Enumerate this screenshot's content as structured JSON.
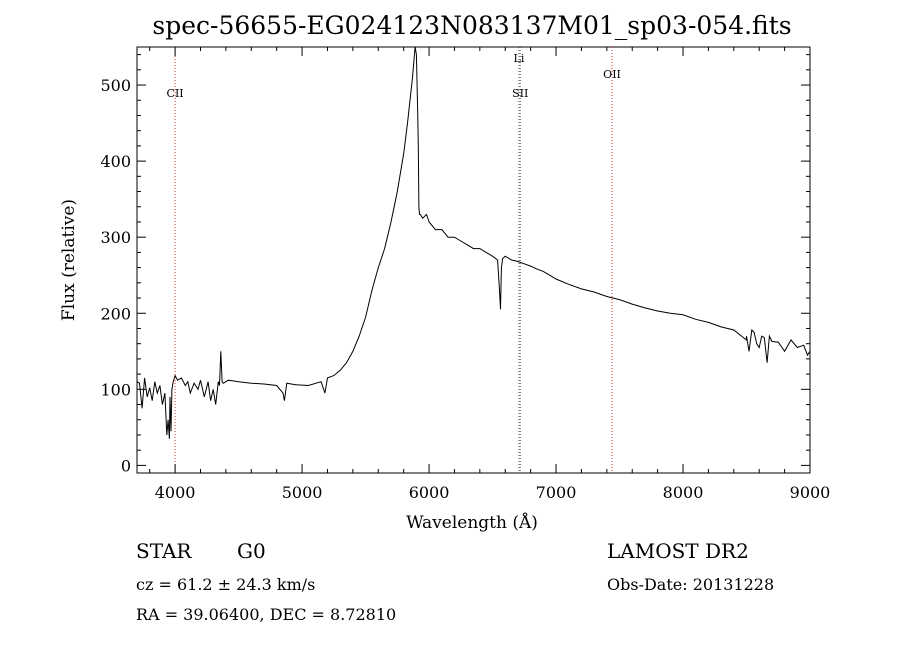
{
  "chart_data": {
    "type": "line",
    "title": "spec-56655-EG024123N083137M01_sp03-054.fits",
    "xlabel": "Wavelength (Å)",
    "ylabel": "Flux (relative)",
    "xlim": [
      3700,
      9000
    ],
    "ylim": [
      -10,
      550
    ],
    "x_ticks": [
      4000,
      5000,
      6000,
      7000,
      8000,
      9000
    ],
    "y_ticks": [
      0,
      100,
      200,
      300,
      400,
      500
    ],
    "grid": false,
    "series": [
      {
        "x": [
          3700,
          3720,
          3740,
          3760,
          3780,
          3800,
          3820,
          3840,
          3860,
          3880,
          3900,
          3920,
          3935,
          3945,
          3955,
          3960,
          3968,
          3975,
          3985,
          4000,
          4020,
          4050,
          4080,
          4100,
          4120,
          4150,
          4180,
          4200,
          4230,
          4260,
          4280,
          4300,
          4320,
          4340,
          4350,
          4360,
          4370,
          4380,
          4420,
          4500,
          4600,
          4700,
          4800,
          4850,
          4861,
          4880,
          4950,
          5050,
          5150,
          5180,
          5200,
          5250,
          5300,
          5350,
          5400,
          5450,
          5500,
          5550,
          5600,
          5650,
          5700,
          5750,
          5800,
          5830,
          5850,
          5870,
          5880,
          5890,
          5900,
          5910,
          5915,
          5920,
          5925,
          5930,
          5950,
          5980,
          6000,
          6050,
          6100,
          6150,
          6200,
          6250,
          6300,
          6350,
          6400,
          6450,
          6500,
          6540,
          6555,
          6563,
          6570,
          6580,
          6600,
          6650,
          6700,
          6750,
          6800,
          6850,
          6900,
          6950,
          7000,
          7100,
          7200,
          7300,
          7400,
          7500,
          7600,
          7700,
          7800,
          7900,
          8000,
          8100,
          8200,
          8300,
          8400,
          8498,
          8500,
          8520,
          8542,
          8560,
          8580,
          8600,
          8620,
          8640,
          8662,
          8680,
          8700,
          8750,
          8800,
          8850,
          8900,
          8950,
          8980,
          9000
        ],
        "y": [
          110,
          108,
          75,
          115,
          90,
          102,
          85,
          110,
          95,
          105,
          80,
          95,
          40,
          60,
          35,
          90,
          45,
          100,
          110,
          118,
          112,
          115,
          105,
          110,
          95,
          108,
          100,
          112,
          90,
          110,
          85,
          100,
          80,
          110,
          105,
          150,
          110,
          108,
          112,
          110,
          108,
          107,
          105,
          95,
          85,
          108,
          106,
          105,
          110,
          95,
          115,
          118,
          125,
          135,
          150,
          170,
          195,
          230,
          260,
          285,
          320,
          360,
          410,
          450,
          480,
          510,
          530,
          560,
          540,
          470,
          420,
          340,
          330,
          330,
          325,
          330,
          320,
          310,
          310,
          300,
          300,
          295,
          290,
          285,
          285,
          280,
          275,
          270,
          230,
          205,
          260,
          272,
          275,
          270,
          268,
          265,
          262,
          258,
          255,
          250,
          245,
          238,
          232,
          228,
          222,
          218,
          212,
          207,
          203,
          200,
          198,
          192,
          188,
          182,
          178,
          165,
          170,
          150,
          178,
          175,
          160,
          155,
          170,
          168,
          135,
          170,
          163,
          162,
          150,
          165,
          155,
          158,
          145,
          150
        ]
      }
    ],
    "lines": [
      {
        "label": "CII",
        "x": 4000,
        "style": "dotted",
        "color": "#dd3333"
      },
      {
        "label": "Li",
        "x": 6708,
        "style": "dotted",
        "color": "#555555"
      },
      {
        "label": "SII",
        "x": 6718,
        "style": "dotted",
        "color": "#555555"
      },
      {
        "label": "OII",
        "x": 7441,
        "style": "dotted",
        "color": "#dd3333"
      }
    ]
  },
  "footer": {
    "object_class": "STAR",
    "subclass": "G0",
    "survey": "LAMOST DR2",
    "redshift_text": "cz = 61.2 ± 24.3 km/s",
    "obs_date": "Obs-Date: 20131228",
    "coords": "RA =  39.06400, DEC =   8.72810"
  }
}
